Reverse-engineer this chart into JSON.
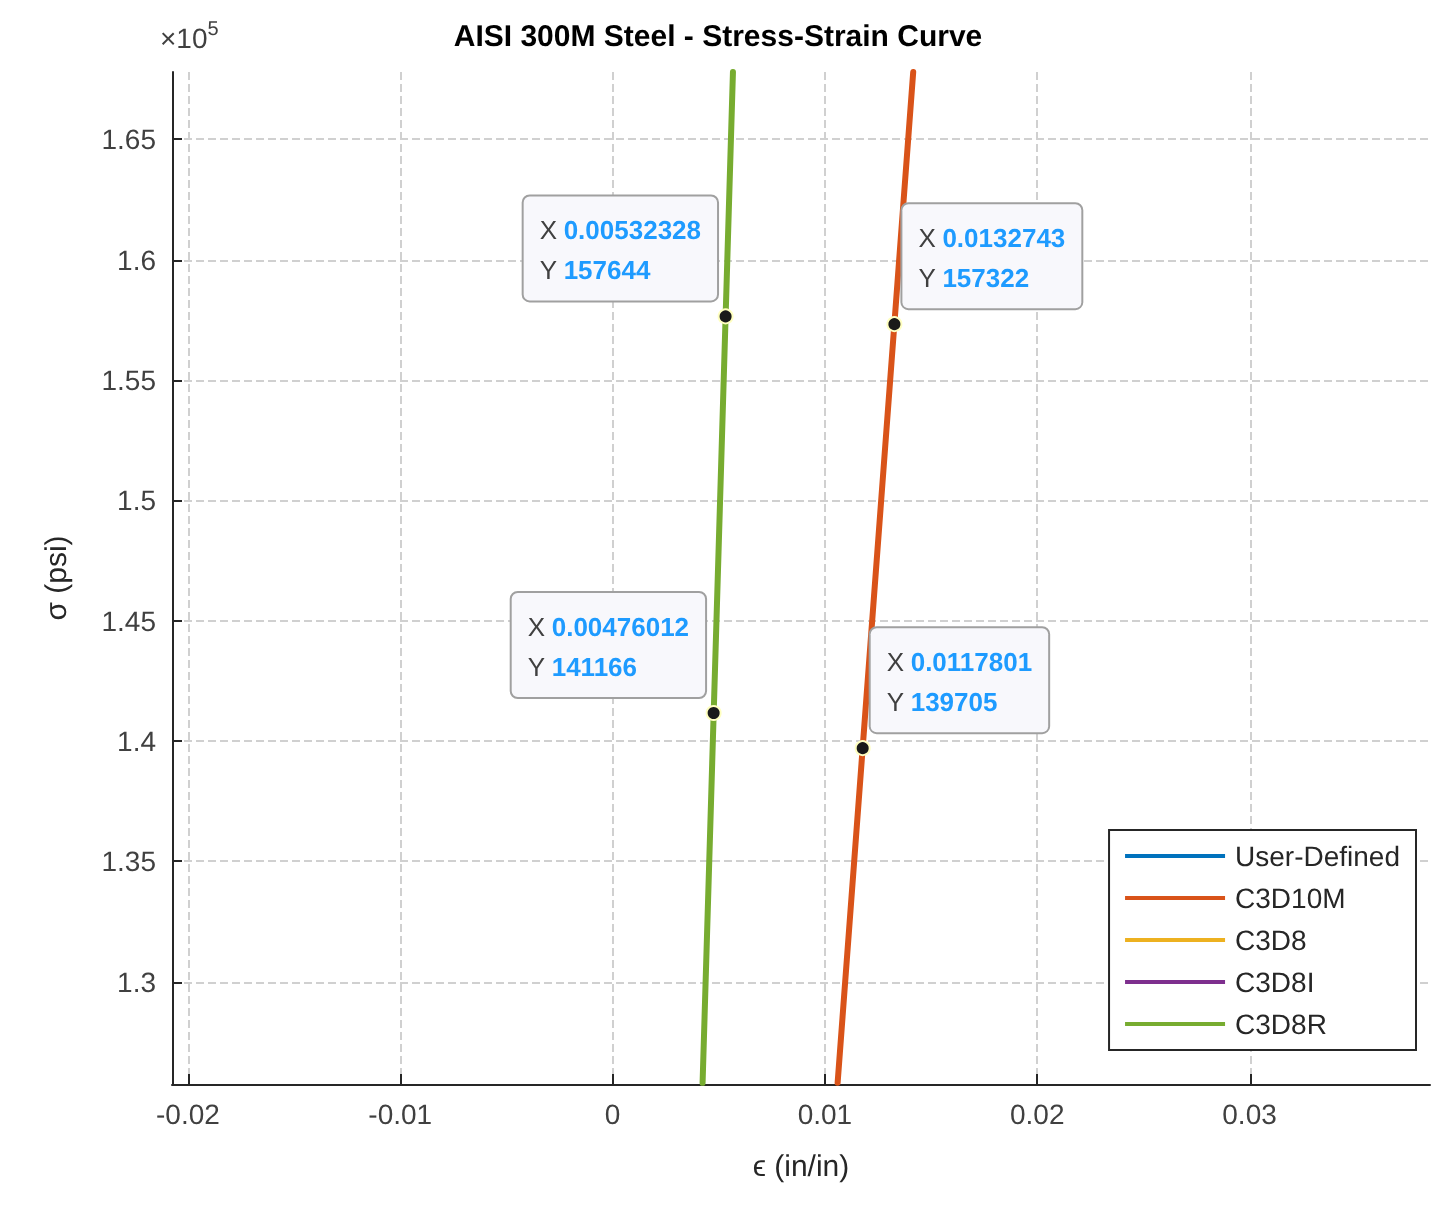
{
  "chart_data": {
    "type": "line",
    "title": "AISI 300M Steel - Stress-Strain Curve",
    "xlabel": "ϵ (in/in)",
    "ylabel": "σ (psi)",
    "series": [
      {
        "name": "User-Defined",
        "color": "#0072bd",
        "values": [
          null
        ]
      },
      {
        "name": "C3D10M",
        "color": "#d95319",
        "x": [
          0.0106,
          0.01416
        ],
        "values": [
          1.258,
          1.678
        ]
      },
      {
        "name": "C3D8",
        "color": "#edb120",
        "values": [
          null
        ]
      },
      {
        "name": "C3D8I",
        "color": "#7e2f8e",
        "values": [
          null
        ]
      },
      {
        "name": "C3D8R",
        "color": "#77ac30",
        "x": [
          0.00424,
          0.00567
        ],
        "values": [
          1.258,
          1.678
        ]
      }
    ],
    "xlim": [
      -0.02075,
      0.0385
    ],
    "xticks": [
      -0.02,
      -0.01,
      0,
      0.01,
      0.02,
      0.03
    ],
    "ylim": [
      1.2575,
      1.678
    ],
    "yticks": [
      1.3,
      1.35,
      1.4,
      1.45,
      1.5,
      1.55,
      1.6,
      1.65
    ],
    "annotations": [
      "×10$^{5}$",
      {
        "text": "X 0.00532328\nY 157644",
        "x": 0.00532328,
        "y": 1.57644
      },
      {
        "text": "X 0.0132743\nY 157322",
        "x": 0.0132743,
        "y": 1.57322
      },
      {
        "text": "X 0.00476012\nY 141166",
        "x": 0.00476012,
        "y": 1.41166
      },
      {
        "text": "X 0.0117801\nY 139705",
        "x": 0.0117801,
        "y": 1.39705
      }
    ],
    "grid": true,
    "legend": "bottom right",
    "marker": "none",
    "line_style": "solid"
  }
}
